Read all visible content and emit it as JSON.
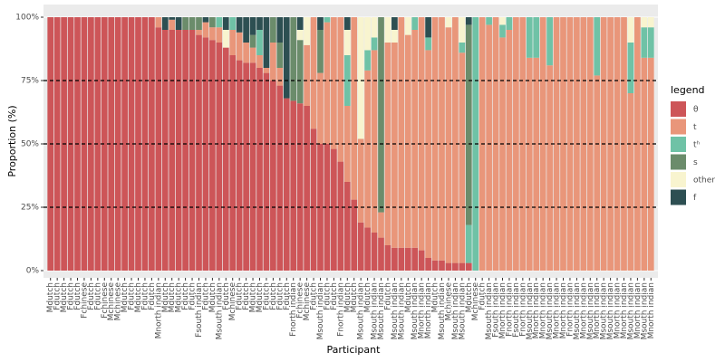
{
  "chart_data": {
    "type": "stacked_bar",
    "x_label": "Participant",
    "y_label": "Proportion (%)",
    "legend_title": "legend",
    "legend": "right",
    "categories": [
      "Mdutch",
      "Fdutch",
      "Mdutch",
      "Fdutch",
      "Fdutch",
      "Fchinese",
      "Fdutch",
      "Fdutch",
      "Fchinese",
      "Mchinese",
      "Mchinese",
      "Mdutch",
      "Fdutch",
      "Mdutch",
      "Fdutch",
      "Fdutch",
      "Mnorth indian",
      "Mdutch",
      "Mdutch",
      "Mdutch",
      "Fdutch",
      "Fdutch",
      "Fsouth indian",
      "Fdutch",
      "Mdutch",
      "Msouth indian",
      "Fdutch",
      "Mchinese",
      "Fdutch",
      "Fdutch",
      "Mdutch",
      "Mdutch",
      "Fdutch",
      "Fdutch",
      "Fdutch",
      "Fdutch",
      "Fnorth indian",
      "Fchinese",
      "Mchinese",
      "Fdutch",
      "Msouth indian",
      "Fdutch",
      "Fdutch",
      "Fnorth indian",
      "Mdutch",
      "Mdutch",
      "Msouth indian",
      "Mdutch",
      "Msouth indian",
      "Msouth indian",
      "Fdutch",
      "Msouth indian",
      "Msouth indian",
      "Mdutch",
      "Msouth indian",
      "Mnorth indian",
      "Mnorth indian",
      "Mdutch",
      "Msouth indian",
      "Mchinese",
      "Msouth indian",
      "Msouth indian",
      "Mdutch",
      "Mchinese",
      "Fdutch",
      "Msouth indian",
      "Fsouth indian",
      "Mnorth indian",
      "Fnorth indian",
      "Fsouth indian",
      "Fnorth indian",
      "Msouth indian",
      "Mnorth indian",
      "Mnorth indian",
      "Msouth indian",
      "Mnorth indian",
      "Mnorth indian",
      "Fnorth indian",
      "Msouth indian",
      "Mnorth indian",
      "Msouth indian",
      "Mnorth indian",
      "Msouth indian",
      "Msouth indian",
      "Mnorth indian",
      "Mnorth indian",
      "Msouth indian",
      "Mnorth indian",
      "Msouth indian",
      "Mnorth indian"
    ],
    "series": [
      {
        "name": "θ",
        "color": "#cd5558",
        "values": [
          100,
          100,
          100,
          100,
          100,
          100,
          100,
          100,
          100,
          100,
          100,
          100,
          100,
          100,
          100,
          100,
          96,
          95,
          95,
          95,
          95,
          95,
          93,
          92,
          91,
          90,
          88,
          85,
          83,
          82,
          82,
          80,
          78,
          75,
          73,
          68,
          67,
          66,
          65,
          56,
          50,
          50,
          48,
          43,
          35,
          28,
          19,
          17,
          15,
          13,
          10,
          9,
          9,
          9,
          9,
          8,
          5,
          4,
          4,
          3,
          3,
          3,
          3,
          0,
          0,
          0,
          0,
          0,
          0,
          0,
          0,
          0,
          0,
          0,
          0,
          0,
          0,
          0,
          0,
          0,
          0,
          0,
          0,
          0,
          0,
          0,
          0,
          0,
          0,
          0
        ]
      },
      {
        "name": "t",
        "color": "#e9967a",
        "values": [
          0,
          0,
          0,
          0,
          0,
          0,
          0,
          0,
          0,
          0,
          0,
          0,
          0,
          0,
          0,
          0,
          4,
          0,
          4,
          0,
          0,
          0,
          2,
          6,
          5,
          6,
          0,
          10,
          11,
          8,
          6,
          5,
          2,
          15,
          7,
          0,
          0,
          0,
          24,
          44,
          28,
          48,
          52,
          57,
          30,
          72,
          33,
          62,
          72,
          10,
          80,
          81,
          91,
          84,
          86,
          92,
          82,
          96,
          96,
          93,
          97,
          83,
          0,
          0,
          100,
          97,
          100,
          92,
          95,
          100,
          100,
          84,
          84,
          100,
          81,
          100,
          100,
          100,
          100,
          100,
          100,
          77,
          100,
          100,
          100,
          100,
          70,
          100,
          84,
          84
        ]
      },
      {
        "name": "tʰ",
        "color": "#6fc2a6",
        "values": [
          0,
          0,
          0,
          0,
          0,
          0,
          0,
          0,
          0,
          0,
          0,
          0,
          0,
          0,
          0,
          0,
          0,
          0,
          0,
          0,
          0,
          0,
          0,
          0,
          0,
          4,
          0,
          5,
          0,
          0,
          0,
          10,
          0,
          0,
          0,
          0,
          0,
          0,
          0,
          0,
          0,
          2,
          0,
          0,
          20,
          0,
          0,
          8,
          5,
          0,
          0,
          0,
          0,
          0,
          5,
          0,
          5,
          0,
          0,
          0,
          0,
          4,
          15,
          100,
          0,
          3,
          0,
          5,
          5,
          0,
          0,
          16,
          16,
          0,
          19,
          0,
          0,
          0,
          0,
          0,
          0,
          23,
          0,
          0,
          0,
          0,
          20,
          0,
          12,
          12
        ]
      },
      {
        "name": "s",
        "color": "#6b8c6b",
        "values": [
          0,
          0,
          0,
          0,
          0,
          0,
          0,
          0,
          0,
          0,
          0,
          0,
          0,
          0,
          0,
          0,
          0,
          0,
          0,
          0,
          5,
          5,
          5,
          0,
          4,
          0,
          0,
          0,
          0,
          0,
          5,
          0,
          0,
          10,
          10,
          0,
          33,
          25,
          0,
          0,
          17,
          0,
          0,
          0,
          0,
          0,
          0,
          0,
          0,
          77,
          0,
          0,
          0,
          0,
          0,
          0,
          0,
          0,
          0,
          0,
          0,
          0,
          79,
          0,
          0,
          0,
          0,
          0,
          0,
          0,
          0,
          0,
          0,
          0,
          0,
          0,
          0,
          0,
          0,
          0,
          0,
          0,
          0,
          0,
          0,
          0,
          0,
          0,
          0,
          0
        ]
      },
      {
        "name": "other",
        "color": "#f8f4cf",
        "values": [
          0,
          0,
          0,
          0,
          0,
          0,
          0,
          0,
          0,
          0,
          0,
          0,
          0,
          0,
          0,
          0,
          0,
          0,
          0,
          0,
          0,
          0,
          0,
          0,
          0,
          0,
          7,
          0,
          0,
          0,
          0,
          0,
          0,
          0,
          0,
          0,
          0,
          4,
          11,
          0,
          0,
          0,
          0,
          0,
          10,
          0,
          48,
          13,
          8,
          0,
          10,
          5,
          0,
          7,
          0,
          0,
          0,
          0,
          0,
          4,
          0,
          10,
          0,
          0,
          0,
          0,
          0,
          3,
          0,
          0,
          0,
          0,
          0,
          0,
          0,
          0,
          0,
          0,
          0,
          0,
          0,
          0,
          0,
          0,
          0,
          0,
          10,
          0,
          4,
          4
        ]
      },
      {
        "name": "f",
        "color": "#2d4f52",
        "values": [
          0,
          0,
          0,
          0,
          0,
          0,
          0,
          0,
          0,
          0,
          0,
          0,
          0,
          0,
          0,
          0,
          0,
          5,
          1,
          5,
          0,
          0,
          0,
          2,
          0,
          0,
          5,
          0,
          6,
          10,
          7,
          5,
          20,
          0,
          10,
          32,
          0,
          5,
          0,
          0,
          5,
          0,
          0,
          0,
          5,
          0,
          0,
          0,
          0,
          0,
          0,
          5,
          0,
          0,
          0,
          0,
          8,
          0,
          0,
          0,
          0,
          0,
          3,
          0,
          0,
          0,
          0,
          0,
          0,
          0,
          0,
          0,
          0,
          0,
          0,
          0,
          0,
          0,
          0,
          0,
          0,
          0,
          0,
          0,
          0,
          0,
          0,
          0,
          0,
          0
        ]
      }
    ],
    "ylim": [
      0,
      100
    ],
    "yticks": [
      {
        "value": 0,
        "label": "0%"
      },
      {
        "value": 25,
        "label": "25%"
      },
      {
        "value": 50,
        "label": "50%"
      },
      {
        "value": 75,
        "label": "75%"
      },
      {
        "value": 100,
        "label": "100%"
      }
    ],
    "reference_lines": [
      25,
      50,
      75
    ],
    "grid": true
  }
}
